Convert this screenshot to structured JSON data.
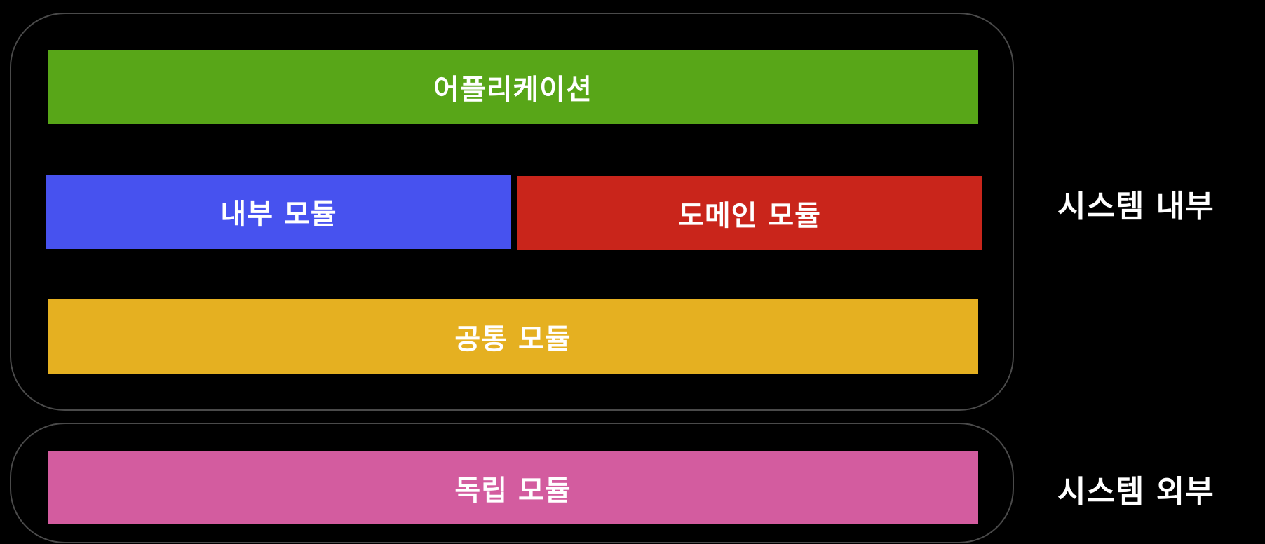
{
  "diagram": {
    "groups": {
      "internal": {
        "label": "시스템 내부",
        "layers": {
          "application": {
            "label": "어플리케이션",
            "color": "#58a618"
          },
          "internal_module": {
            "label": "내부 모듈",
            "color": "#4752ef"
          },
          "domain_module": {
            "label": "도메인 모듈",
            "color": "#c9251b"
          },
          "common_module": {
            "label": "공통 모듈",
            "color": "#e5b021"
          }
        }
      },
      "external": {
        "label": "시스템 외부",
        "layers": {
          "independent_module": {
            "label": "독립 모듈",
            "color": "#d35c9f"
          }
        }
      }
    }
  }
}
